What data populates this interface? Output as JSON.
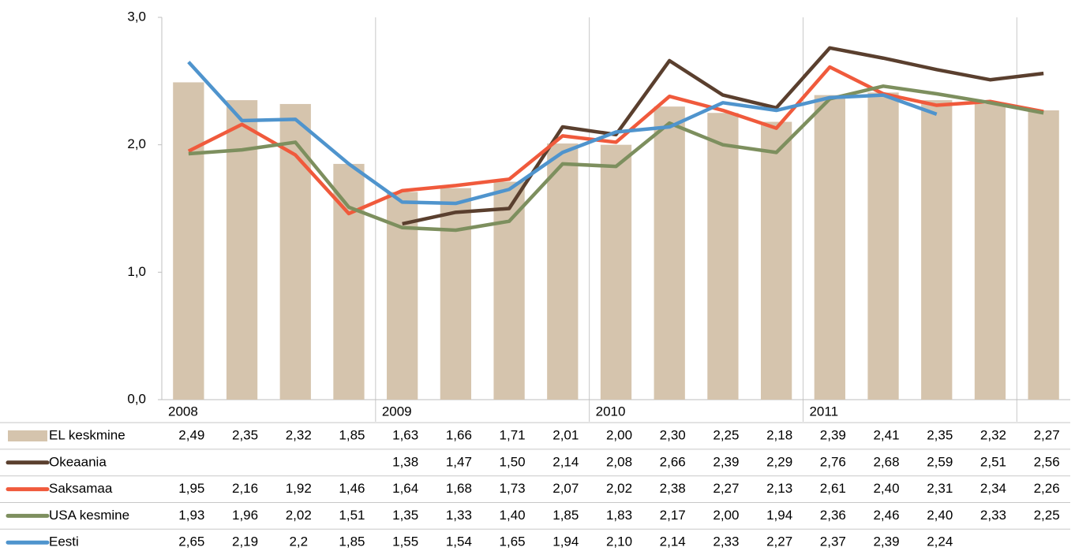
{
  "chart_data": {
    "type": "combo",
    "categories": [
      "2008",
      null,
      null,
      null,
      "2009",
      null,
      null,
      null,
      "2010",
      null,
      null,
      null,
      "2011",
      null,
      null,
      null,
      null
    ],
    "ylim": [
      0,
      3
    ],
    "yticks": [
      {
        "value": 0,
        "label": "0,0"
      },
      {
        "value": 1,
        "label": "1,0"
      },
      {
        "value": 2,
        "label": "2,0"
      },
      {
        "value": 3,
        "label": "3,0"
      }
    ],
    "series": [
      {
        "name": "EL keskmine",
        "type": "bar",
        "color": "#d5c4ad",
        "values": [
          2.49,
          2.35,
          2.32,
          1.85,
          1.63,
          1.66,
          1.71,
          2.01,
          2.0,
          2.3,
          2.25,
          2.18,
          2.39,
          2.41,
          2.35,
          2.32,
          2.27
        ],
        "value_labels": [
          "2,49",
          "2,35",
          "2,32",
          "1,85",
          "1,63",
          "1,66",
          "1,71",
          "2,01",
          "2,00",
          "2,30",
          "2,25",
          "2,18",
          "2,39",
          "2,41",
          "2,35",
          "2,32",
          "2,27"
        ]
      },
      {
        "name": "Okeaania",
        "type": "line",
        "color": "#5a3f2e",
        "values": [
          null,
          null,
          null,
          null,
          1.38,
          1.47,
          1.5,
          2.14,
          2.08,
          2.66,
          2.39,
          2.29,
          2.76,
          2.68,
          2.59,
          2.51,
          2.56
        ],
        "value_labels": [
          null,
          null,
          null,
          null,
          "1,38",
          "1,47",
          "1,50",
          "2,14",
          "2,08",
          "2,66",
          "2,39",
          "2,29",
          "2,76",
          "2,68",
          "2,59",
          "2,51",
          "2,56"
        ]
      },
      {
        "name": "Saksamaa",
        "type": "line",
        "color": "#f05a3c",
        "values": [
          1.95,
          2.16,
          1.92,
          1.46,
          1.64,
          1.68,
          1.73,
          2.07,
          2.02,
          2.38,
          2.27,
          2.13,
          2.61,
          2.4,
          2.31,
          2.34,
          2.26
        ],
        "value_labels": [
          "1,95",
          "2,16",
          "1,92",
          "1,46",
          "1,64",
          "1,68",
          "1,73",
          "2,07",
          "2,02",
          "2,38",
          "2,27",
          "2,13",
          "2,61",
          "2,40",
          "2,31",
          "2,34",
          "2,26"
        ]
      },
      {
        "name": "USA kesmine",
        "type": "line",
        "color": "#7d8f5e",
        "values": [
          1.93,
          1.96,
          2.02,
          1.51,
          1.35,
          1.33,
          1.4,
          1.85,
          1.83,
          2.17,
          2.0,
          1.94,
          2.36,
          2.46,
          2.4,
          2.33,
          2.25
        ],
        "value_labels": [
          "1,93",
          "1,96",
          "2,02",
          "1,51",
          "1,35",
          "1,33",
          "1,40",
          "1,85",
          "1,83",
          "2,17",
          "2,00",
          "1,94",
          "2,36",
          "2,46",
          "2,40",
          "2,33",
          "2,25"
        ]
      },
      {
        "name": "Eesti",
        "type": "line",
        "color": "#4f94cd",
        "values": [
          2.65,
          2.19,
          2.2,
          1.85,
          1.55,
          1.54,
          1.65,
          1.94,
          2.1,
          2.14,
          2.33,
          2.27,
          2.37,
          2.39,
          2.24,
          null,
          null
        ],
        "value_labels": [
          "2,65",
          "2,19",
          "2,2",
          "1,85",
          "1,55",
          "1,54",
          "1,65",
          "1,94",
          "2,10",
          "2,14",
          "2,33",
          "2,27",
          "2,37",
          "2,39",
          "2,24",
          null,
          null
        ]
      }
    ]
  }
}
